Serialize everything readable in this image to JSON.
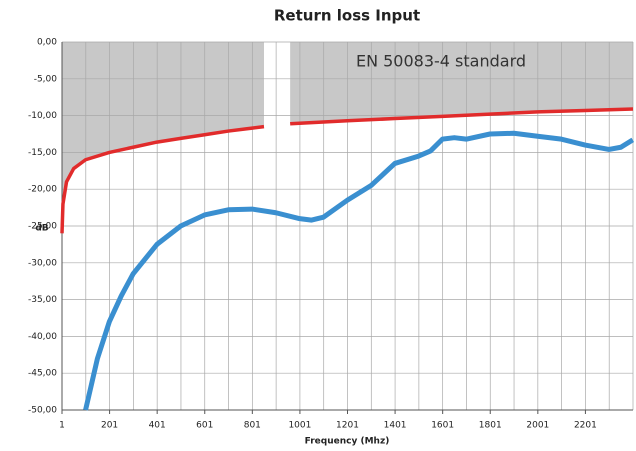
{
  "chart_data": {
    "type": "line",
    "title": "Return loss Input",
    "xlabel": "Frequency (Mhz)",
    "ylabel": "dB",
    "annotation": "EN 50083-4 standard",
    "xlim": [
      1,
      2401
    ],
    "ylim": [
      -50,
      0
    ],
    "xticks": [
      1,
      201,
      401,
      601,
      801,
      1001,
      1201,
      1401,
      1601,
      1801,
      2001,
      2201
    ],
    "xgrid": [
      1,
      101,
      201,
      301,
      401,
      501,
      601,
      701,
      801,
      901,
      1001,
      1101,
      1201,
      1301,
      1401,
      1501,
      1601,
      1701,
      1801,
      1901,
      2001,
      2101,
      2201,
      2301,
      2401
    ],
    "yticks": [
      {
        "value": 0,
        "label": "0,00"
      },
      {
        "value": -5,
        "label": "-5,00"
      },
      {
        "value": -10,
        "label": "-10,00"
      },
      {
        "value": -15,
        "label": "-15,00"
      },
      {
        "value": -20,
        "label": "-20,00"
      },
      {
        "value": -25,
        "label": "-25,00"
      },
      {
        "value": -30,
        "label": "-30,00"
      },
      {
        "value": -35,
        "label": "-35,00"
      },
      {
        "value": -40,
        "label": "-40,00"
      },
      {
        "value": -45,
        "label": "-45,00"
      },
      {
        "value": -50,
        "label": "-50,00"
      }
    ],
    "grid": true,
    "series": [
      {
        "color": "#e12b2b",
        "fill": "#c8c8c8",
        "x": [
          1,
          5,
          20,
          50,
          100,
          200,
          300,
          400,
          500,
          600,
          700,
          800,
          850,
          900,
          960,
          1200,
          1400,
          1600,
          1800,
          2000,
          2200,
          2401
        ],
        "values": [
          -26,
          -22,
          -19,
          -17.2,
          -16,
          -15,
          -14.3,
          -13.6,
          -13.1,
          -12.6,
          -12.1,
          -11.7,
          -11.5,
          null,
          -11.1,
          -10.7,
          -10.4,
          -10.1,
          -9.8,
          -9.5,
          -9.3,
          -9.1
        ]
      },
      {
        "color": "#3a8fd0",
        "x": [
          100,
          150,
          200,
          250,
          300,
          400,
          500,
          600,
          700,
          800,
          900,
          1000,
          1050,
          1100,
          1200,
          1300,
          1400,
          1500,
          1550,
          1600,
          1650,
          1700,
          1800,
          1900,
          2000,
          2100,
          2200,
          2300,
          2350,
          2400
        ],
        "values": [
          -50,
          -43,
          -38,
          -34.5,
          -31.5,
          -27.5,
          -25,
          -23.5,
          -22.8,
          -22.7,
          -23.2,
          -24,
          -24.2,
          -23.8,
          -21.5,
          -19.5,
          -16.5,
          -15.5,
          -14.8,
          -13.2,
          -13,
          -13.2,
          -12.5,
          -12.4,
          -12.8,
          -13.2,
          -14,
          -14.6,
          -14.3,
          -13.3
        ]
      }
    ]
  }
}
